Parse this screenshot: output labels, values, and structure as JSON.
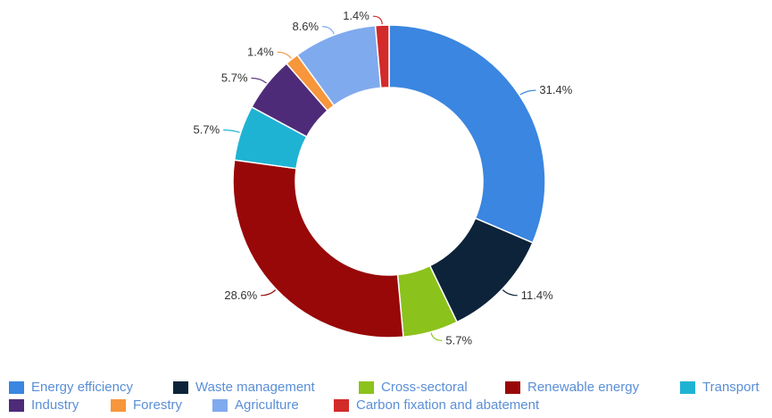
{
  "chart_data": {
    "type": "pie",
    "donut": true,
    "title": "",
    "legend_position": "bottom",
    "slices": [
      {
        "name": "Energy efficiency",
        "value": 31.4,
        "label": "31.4%",
        "color": "#3a86e0"
      },
      {
        "name": "Waste management",
        "value": 11.4,
        "label": "11.4%",
        "color": "#0d2339"
      },
      {
        "name": "Cross-sectoral",
        "value": 5.7,
        "label": "5.7%",
        "color": "#8cc21c"
      },
      {
        "name": "Renewable energy",
        "value": 28.6,
        "label": "28.6%",
        "color": "#980808"
      },
      {
        "name": "Transport",
        "value": 5.7,
        "label": "5.7%",
        "color": "#1fb3d3"
      },
      {
        "name": "Industry",
        "value": 5.7,
        "label": "5.7%",
        "color": "#4e2b79"
      },
      {
        "name": "Forestry",
        "value": 1.4,
        "label": "1.4%",
        "color": "#f7963b"
      },
      {
        "name": "Agriculture",
        "value": 8.6,
        "label": "8.6%",
        "color": "#80aaee"
      },
      {
        "name": "Carbon fixation and abatement",
        "value": 1.4,
        "label": "1.4%",
        "color": "#d32a2a"
      }
    ]
  }
}
